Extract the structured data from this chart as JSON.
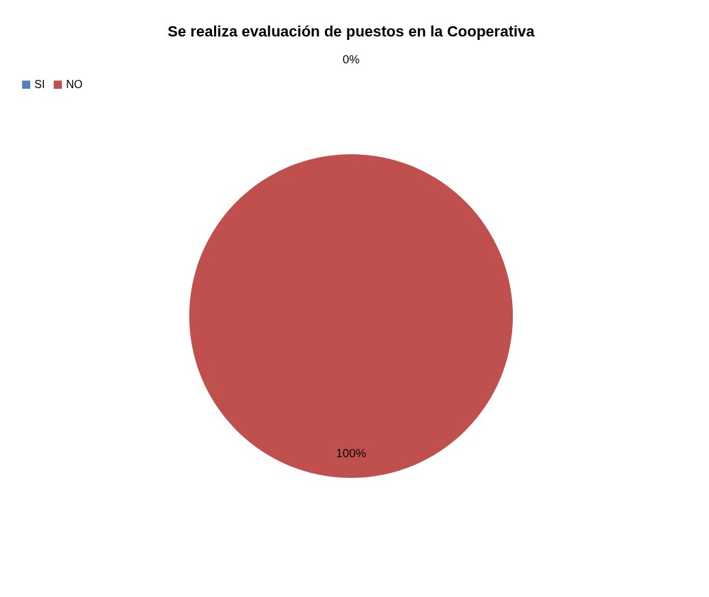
{
  "chart_data": {
    "type": "pie",
    "title": "Se realiza evaluación de puestos en la Cooperativa",
    "categories": [
      "SI",
      "NO"
    ],
    "values": [
      0,
      100
    ],
    "colors": [
      "#4f81bd",
      "#c0504d"
    ],
    "value_labels": [
      "0%",
      "100%"
    ],
    "legend": "top"
  }
}
